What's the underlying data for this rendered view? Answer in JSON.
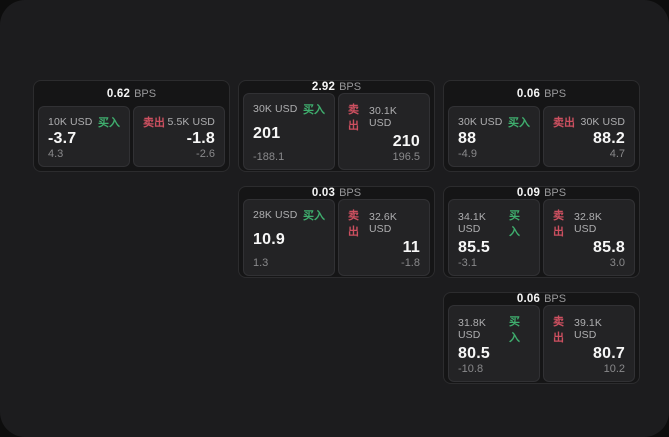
{
  "labels": {
    "bps_unit": "BPS",
    "buy": "买入",
    "sell": "卖出"
  },
  "colors": {
    "buy": "#3fae6e",
    "sell": "#cd5060",
    "panel_bg": "#1c1c1e",
    "card_bg": "#151516",
    "tile_bg": "#232325"
  },
  "cards": [
    {
      "row": 1,
      "col": 1,
      "bps": "0.62",
      "buy": {
        "amount": "10K USD",
        "price": "-3.7",
        "sub": "4.3"
      },
      "sell": {
        "amount": "5.5K USD",
        "price": "-1.8",
        "sub": "-2.6"
      }
    },
    {
      "row": 1,
      "col": 2,
      "bps": "2.92",
      "buy": {
        "amount": "30K USD",
        "price": "201",
        "sub": "-188.1"
      },
      "sell": {
        "amount": "30.1K USD",
        "price": "210",
        "sub": "196.5"
      }
    },
    {
      "row": 1,
      "col": 3,
      "bps": "0.06",
      "buy": {
        "amount": "30K USD",
        "price": "88",
        "sub": "-4.9"
      },
      "sell": {
        "amount": "30K USD",
        "price": "88.2",
        "sub": "4.7"
      }
    },
    {
      "row": 2,
      "col": 2,
      "bps": "0.03",
      "buy": {
        "amount": "28K USD",
        "price": "10.9",
        "sub": "1.3"
      },
      "sell": {
        "amount": "32.6K USD",
        "price": "11",
        "sub": "-1.8"
      }
    },
    {
      "row": 2,
      "col": 3,
      "bps": "0.09",
      "buy": {
        "amount": "34.1K USD",
        "price": "85.5",
        "sub": "-3.1"
      },
      "sell": {
        "amount": "32.8K USD",
        "price": "85.8",
        "sub": "3.0"
      }
    },
    {
      "row": 3,
      "col": 3,
      "bps": "0.06",
      "buy": {
        "amount": "31.8K USD",
        "price": "80.5",
        "sub": "-10.8"
      },
      "sell": {
        "amount": "39.1K USD",
        "price": "80.7",
        "sub": "10.2"
      }
    }
  ]
}
